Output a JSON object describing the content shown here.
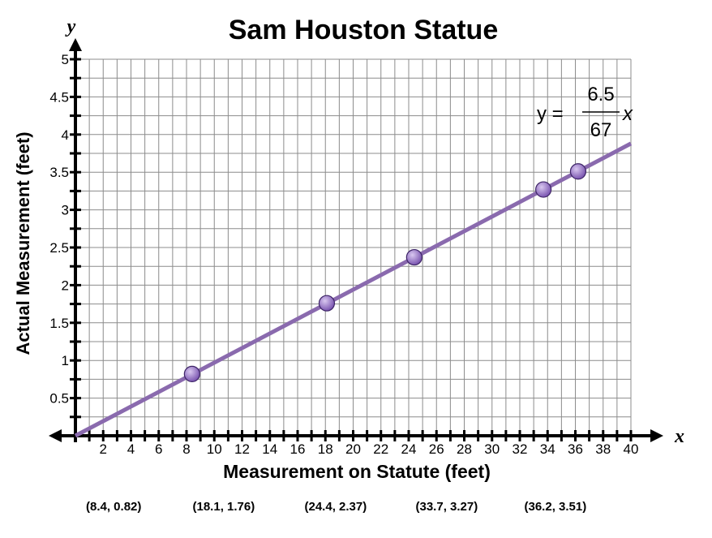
{
  "chart_data": {
    "type": "scatter",
    "title": "Sam Houston Statue",
    "xlabel": "Measurement on Statute (feet)",
    "ylabel": "Actual Measurement (feet)",
    "x_axis_letter": "x",
    "y_axis_letter": "y",
    "xlim": [
      0,
      40
    ],
    "ylim": [
      0,
      5
    ],
    "x_ticks": [
      2,
      4,
      6,
      8,
      10,
      12,
      14,
      16,
      18,
      20,
      22,
      24,
      26,
      28,
      30,
      32,
      34,
      36,
      38,
      40
    ],
    "y_ticks": [
      0.5,
      1,
      1.5,
      2,
      2.5,
      3,
      3.5,
      4,
      4.5,
      5
    ],
    "grid": true,
    "points": [
      {
        "x": 8.4,
        "y": 0.82,
        "label": "(8.4, 0.82)"
      },
      {
        "x": 18.1,
        "y": 1.76,
        "label": "(18.1, 1.76)"
      },
      {
        "x": 24.4,
        "y": 2.37,
        "label": "(24.4, 2.37)"
      },
      {
        "x": 33.7,
        "y": 3.27,
        "label": "(33.7, 3.27)"
      },
      {
        "x": 36.2,
        "y": 3.51,
        "label": "(36.2, 3.51)"
      }
    ],
    "line": {
      "slope_numerator": 6.5,
      "slope_denominator": 67,
      "equation_lhs": "y =",
      "equation_numerator": "6.5",
      "equation_denominator": "67",
      "equation_var": "x",
      "x_range": [
        0,
        40
      ]
    },
    "colors": {
      "line": "#8a6aae",
      "point": "#7a55b0",
      "point_highlight": "#d9c8f0",
      "grid": "#8c8c8c",
      "axis": "#000000"
    }
  }
}
